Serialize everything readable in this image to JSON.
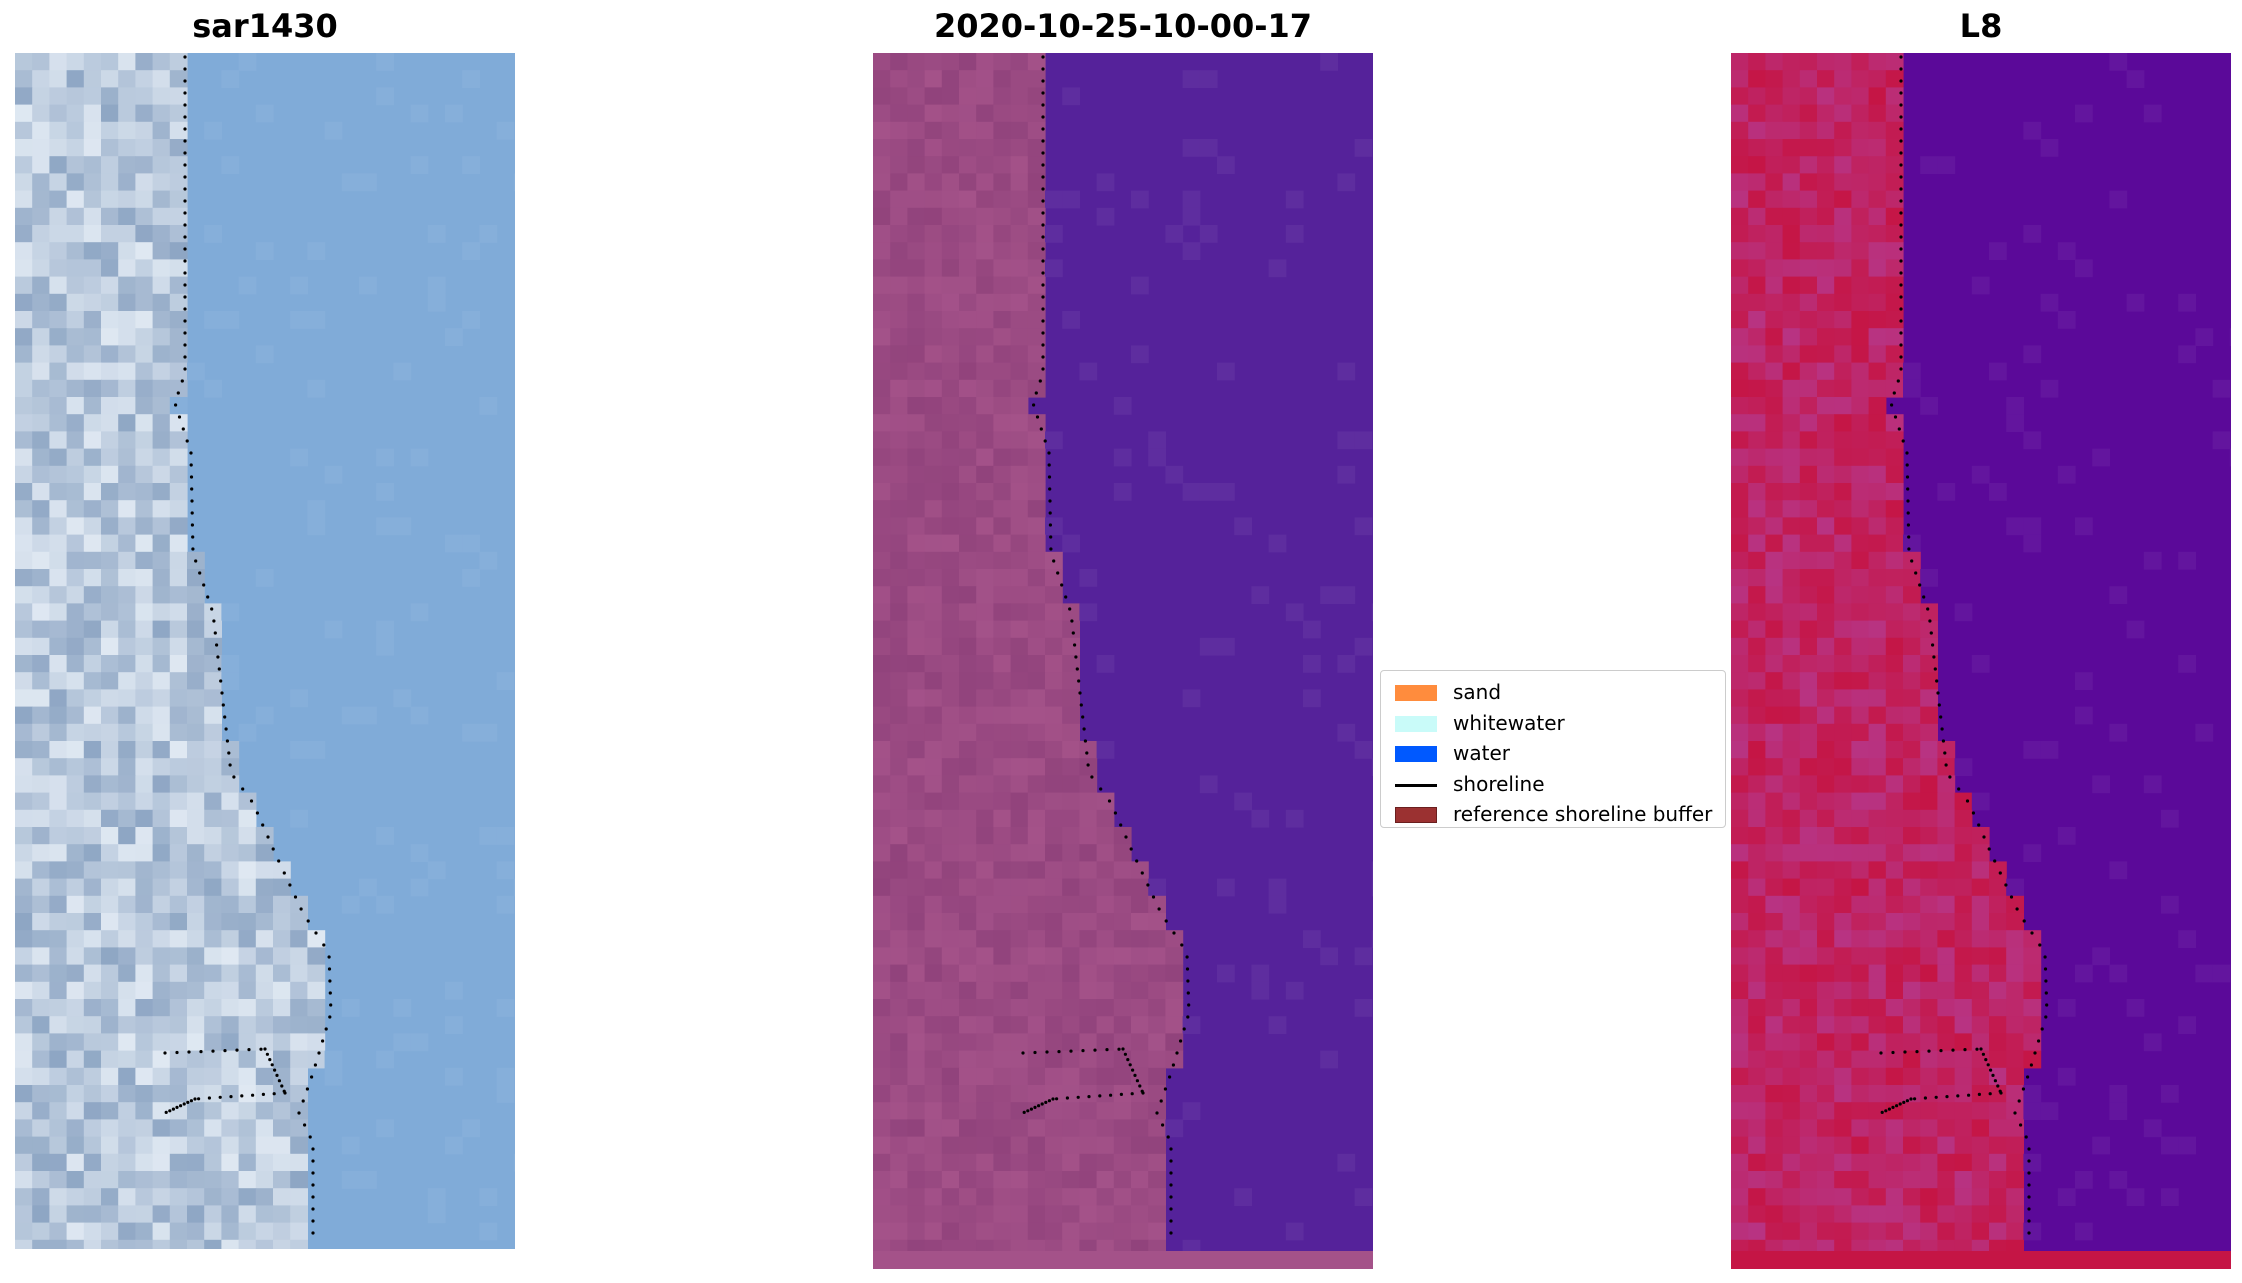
{
  "panels": [
    {
      "title": "sar1430",
      "style": "rgb"
    },
    {
      "title": "2020-10-25-10-00-17",
      "style": "classified"
    },
    {
      "title": "L8",
      "style": "ndwi"
    }
  ],
  "legend": {
    "items": [
      {
        "label": "sand",
        "type": "patch",
        "color": "#ff8c3d",
        "edge": "#ff8c3d"
      },
      {
        "label": "whitewater",
        "type": "patch",
        "color": "#c9fbf9",
        "edge": "#c9fbf9"
      },
      {
        "label": "water",
        "type": "patch",
        "color": "#0059ff",
        "edge": "#0059ff"
      },
      {
        "label": "shoreline",
        "type": "line",
        "color": "#000000"
      },
      {
        "label": "reference shoreline buffer",
        "type": "patch",
        "color": "#9b3131",
        "edge": "#6a1f1f"
      }
    ]
  },
  "colors": {
    "ocean_rgb": "#80abd8",
    "land_rgb_light": "#dfe8f2",
    "land_rgb_dark": "#8ea6c4",
    "water_classified": "#55229a",
    "land_classified": "#a45289",
    "water_ndwi": "#5b0999",
    "land_ndwi": "#c51545",
    "shoreline_dots": "#000000"
  }
}
